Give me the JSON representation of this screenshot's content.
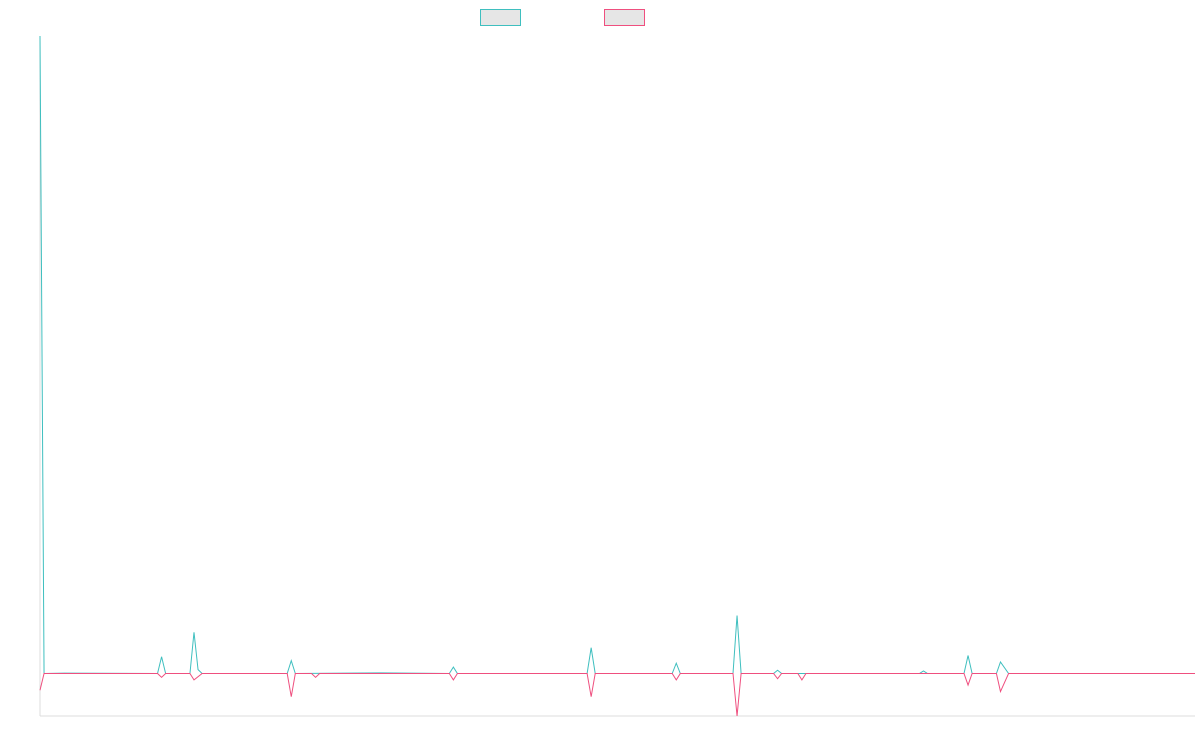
{
  "chart_data": {
    "type": "line",
    "title": "",
    "xlabel": "",
    "ylabel": "",
    "grid": false,
    "legend_position": "top-center",
    "xlim": [
      0,
      285
    ],
    "ylim": [
      -0.33,
      4.95
    ],
    "background": "#ffffff",
    "axis_color": "#dcdcdc",
    "legend_fill": "#e6e6e6",
    "series": [
      {
        "color": "#3fbfbf",
        "points": [
          [
            0,
            4.95
          ],
          [
            1,
            0
          ],
          [
            6,
            0.003
          ],
          [
            29,
            0
          ],
          [
            30,
            0.13
          ],
          [
            31,
            0
          ],
          [
            37,
            0
          ],
          [
            38,
            0.32
          ],
          [
            39,
            0.03
          ],
          [
            40,
            0
          ],
          [
            61,
            0
          ],
          [
            62,
            0.1
          ],
          [
            63,
            0
          ],
          [
            84,
            0.005
          ],
          [
            101,
            0
          ],
          [
            102,
            0.05
          ],
          [
            103,
            0
          ],
          [
            135,
            0
          ],
          [
            136,
            0.2
          ],
          [
            137,
            0
          ],
          [
            156,
            0
          ],
          [
            157,
            0.08
          ],
          [
            158,
            0
          ],
          [
            171,
            0
          ],
          [
            172,
            0.45
          ],
          [
            173,
            0
          ],
          [
            181,
            0
          ],
          [
            182,
            0.025
          ],
          [
            183,
            0
          ],
          [
            217,
            0
          ],
          [
            218,
            0.02
          ],
          [
            219,
            0
          ],
          [
            228,
            0
          ],
          [
            229,
            0.14
          ],
          [
            230,
            0
          ],
          [
            236,
            0
          ],
          [
            237,
            0.09
          ],
          [
            239,
            0
          ],
          [
            285,
            0
          ]
        ]
      },
      {
        "color": "#ef4f7f",
        "points": [
          [
            0,
            -0.13
          ],
          [
            1,
            0
          ],
          [
            29,
            0
          ],
          [
            30,
            -0.03
          ],
          [
            31,
            0
          ],
          [
            37,
            0
          ],
          [
            38,
            -0.05
          ],
          [
            40,
            0
          ],
          [
            61,
            0
          ],
          [
            62,
            -0.18
          ],
          [
            63,
            0
          ],
          [
            67,
            0
          ],
          [
            68,
            -0.03
          ],
          [
            69,
            0
          ],
          [
            101,
            0
          ],
          [
            102,
            -0.05
          ],
          [
            103,
            0
          ],
          [
            135,
            0
          ],
          [
            136,
            -0.18
          ],
          [
            137,
            0
          ],
          [
            156,
            0
          ],
          [
            157,
            -0.05
          ],
          [
            158,
            0
          ],
          [
            171,
            0
          ],
          [
            172,
            -0.33
          ],
          [
            173,
            0
          ],
          [
            181,
            0
          ],
          [
            182,
            -0.04
          ],
          [
            183,
            0
          ],
          [
            187,
            0
          ],
          [
            188,
            -0.05
          ],
          [
            189,
            0
          ],
          [
            228,
            0
          ],
          [
            229,
            -0.09
          ],
          [
            230,
            0
          ],
          [
            236,
            0
          ],
          [
            237,
            -0.14
          ],
          [
            239,
            0
          ],
          [
            285,
            0
          ]
        ]
      }
    ]
  }
}
